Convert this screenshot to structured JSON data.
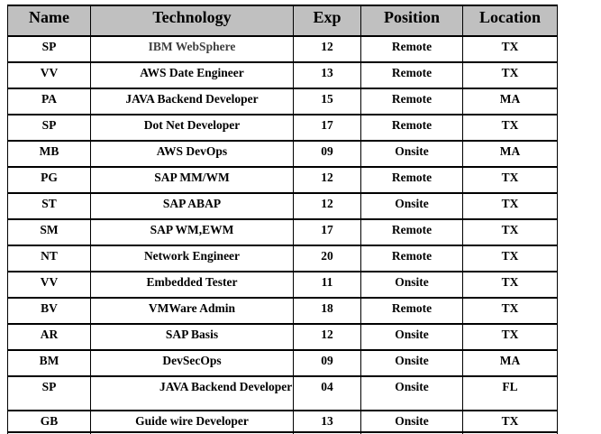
{
  "table": {
    "headers": {
      "name": "Name",
      "technology": "Technology",
      "exp": "Exp",
      "position": "Position",
      "location": "Location"
    },
    "rows": [
      {
        "name": "SP",
        "technology": "IBM WebSphere",
        "exp": "12",
        "position": "Remote",
        "location": "TX"
      },
      {
        "name": "VV",
        "technology": "AWS Date Engineer",
        "exp": "13",
        "position": "Remote",
        "location": "TX"
      },
      {
        "name": "PA",
        "technology": "JAVA Backend Developer",
        "exp": "15",
        "position": "Remote",
        "location": "MA"
      },
      {
        "name": "SP",
        "technology": "Dot Net Developer",
        "exp": "17",
        "position": "Remote",
        "location": "TX"
      },
      {
        "name": "MB",
        "technology": "AWS DevOps",
        "exp": "09",
        "position": "Onsite",
        "location": "MA"
      },
      {
        "name": "PG",
        "technology": "SAP MM/WM",
        "exp": "12",
        "position": "Remote",
        "location": "TX"
      },
      {
        "name": "ST",
        "technology": "SAP ABAP",
        "exp": "12",
        "position": "Onsite",
        "location": "TX"
      },
      {
        "name": "SM",
        "technology": "SAP WM,EWM",
        "exp": "17",
        "position": "Remote",
        "location": "TX"
      },
      {
        "name": "NT",
        "technology": "Network Engineer",
        "exp": "20",
        "position": "Remote",
        "location": "TX"
      },
      {
        "name": "VV",
        "technology": "Embedded Tester",
        "exp": "11",
        "position": "Onsite",
        "location": "TX"
      },
      {
        "name": "BV",
        "technology": "VMWare Admin",
        "exp": "18",
        "position": "Remote",
        "location": "TX"
      },
      {
        "name": "AR",
        "technology": "SAP Basis",
        "exp": "12",
        "position": "Onsite",
        "location": "TX"
      },
      {
        "name": "BM",
        "technology": "DevSecOps",
        "exp": "09",
        "position": "Onsite",
        "location": "MA"
      },
      {
        "name": "SP",
        "technology": "JAVA Backend Developer",
        "exp": "04",
        "position": "Onsite",
        "location": "FL"
      },
      {
        "name": "GB",
        "technology": "Guide wire Developer",
        "exp": "13",
        "position": "Onsite",
        "location": "TX"
      }
    ]
  },
  "colors": {
    "header_background": "#c0c0c0",
    "border": "#000000",
    "text": "#000000",
    "muted_text": "#3f3f3f",
    "page_background": "#ffffff"
  }
}
